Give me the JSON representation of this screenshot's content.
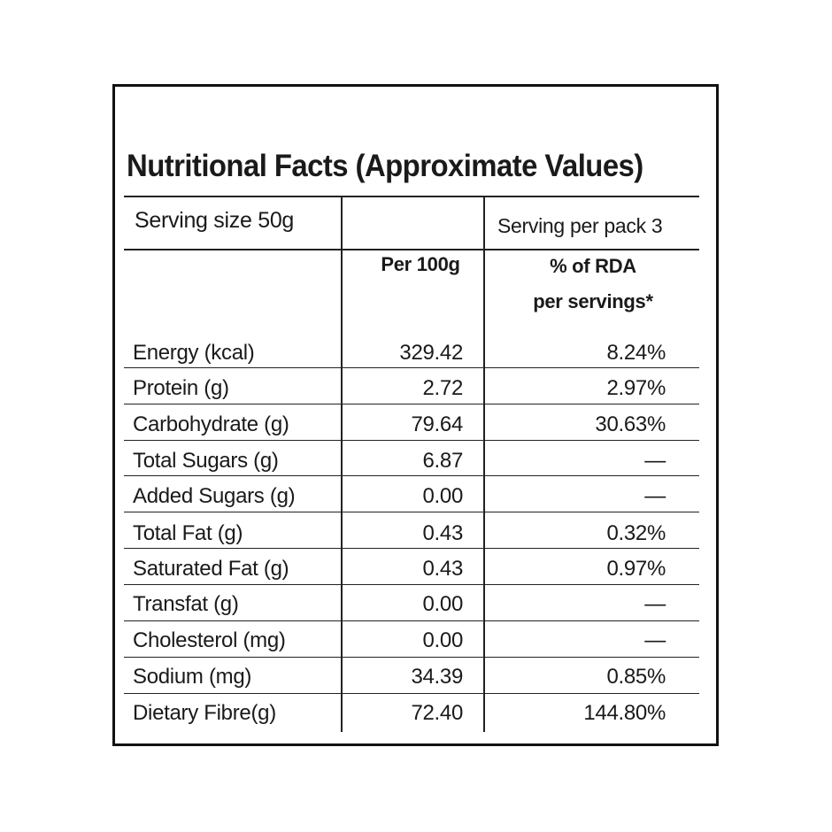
{
  "label": {
    "title": "Nutritional Facts (Approximate Values)",
    "serving_size": "Serving size 50g",
    "serving_per_pack": "Serving per pack 3",
    "col_per100": "Per 100g",
    "col_rda_line1": "% of RDA",
    "col_rda_line2": "per servings*"
  },
  "rows": [
    {
      "nutrient": "Energy (kcal)",
      "per100": "329.42",
      "rda": "8.24%"
    },
    {
      "nutrient": "Protein (g)",
      "per100": "2.72",
      "rda": "2.97%"
    },
    {
      "nutrient": "Carbohydrate (g)",
      "per100": "79.64",
      "rda": "30.63%"
    },
    {
      "nutrient": "Total Sugars (g)",
      "per100": "6.87",
      "rda": "—"
    },
    {
      "nutrient": "Added Sugars (g)",
      "per100": "0.00",
      "rda": "—"
    },
    {
      "nutrient": "Total Fat (g)",
      "per100": "0.43",
      "rda": "0.32%"
    },
    {
      "nutrient": "Saturated Fat (g)",
      "per100": "0.43",
      "rda": "0.97%"
    },
    {
      "nutrient": "Transfat (g)",
      "per100": "0.00",
      "rda": "—"
    },
    {
      "nutrient": "Cholesterol (mg)",
      "per100": "0.00",
      "rda": "—"
    },
    {
      "nutrient": "Sodium (mg)",
      "per100": "34.39",
      "rda": "0.85%"
    },
    {
      "nutrient": "Dietary Fibre(g)",
      "per100": "72.40",
      "rda": "144.80%"
    }
  ]
}
